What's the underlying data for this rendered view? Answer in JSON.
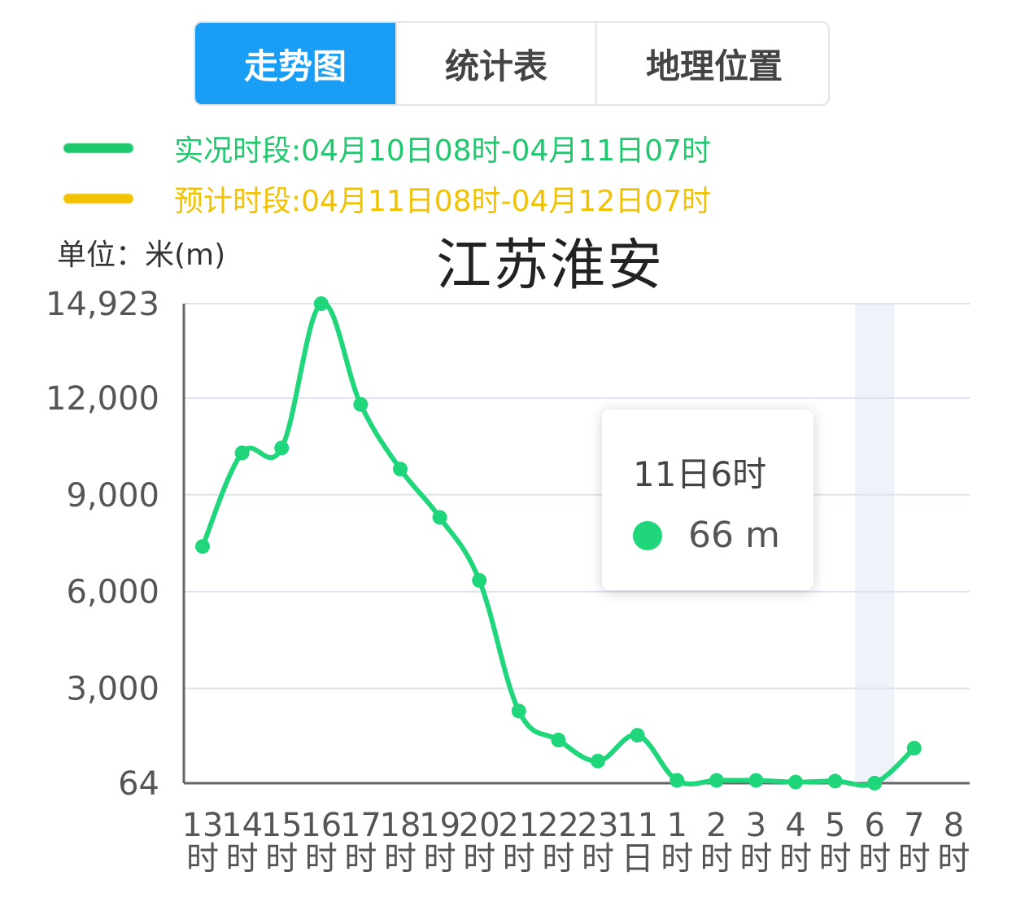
{
  "tabs": [
    {
      "label": "走势图",
      "active": true
    },
    {
      "label": "统计表",
      "active": false
    },
    {
      "label": "地理位置",
      "active": false
    }
  ],
  "legend": {
    "actual": {
      "label": "实况时段:04月10日08时-04月11日07时",
      "color": "#1fc86e"
    },
    "forecast": {
      "label": "预计时段:04月11日08时-04月12日07时",
      "color": "#f2c200"
    }
  },
  "unit_label": "单位：米(m)",
  "chart_data": {
    "type": "line",
    "title": "江苏淮安",
    "ylabel": "单位：米(m)",
    "ylim": [
      64,
      14923
    ],
    "yticks": [
      {
        "label": "14,923",
        "value": 14923
      },
      {
        "label": "12,000",
        "value": 12000
      },
      {
        "label": "9,000",
        "value": 9000
      },
      {
        "label": "6,000",
        "value": 6000
      },
      {
        "label": "3,000",
        "value": 3000
      },
      {
        "label": "64",
        "value": 64
      }
    ],
    "categories": [
      [
        "13",
        "时"
      ],
      [
        "14",
        "时"
      ],
      [
        "15",
        "时"
      ],
      [
        "16",
        "时"
      ],
      [
        "17",
        "时"
      ],
      [
        "18",
        "时"
      ],
      [
        "19",
        "时"
      ],
      [
        "20",
        "时"
      ],
      [
        "21",
        "时"
      ],
      [
        "22",
        "时"
      ],
      [
        "23",
        "时"
      ],
      [
        "11",
        "日"
      ],
      [
        "1",
        "时"
      ],
      [
        "2",
        "时"
      ],
      [
        "3",
        "时"
      ],
      [
        "4",
        "时"
      ],
      [
        "5",
        "时"
      ],
      [
        "6",
        "时"
      ],
      [
        "7",
        "时"
      ],
      [
        "8",
        "时"
      ]
    ],
    "series": [
      {
        "color": "#1fd67a",
        "values": [
          7400,
          10300,
          10450,
          14923,
          11800,
          9800,
          8300,
          6350,
          2300,
          1400,
          750,
          1550,
          150,
          150,
          150,
          100,
          130,
          66,
          1150,
          null
        ]
      }
    ],
    "highlight_index": 17,
    "grid": true
  },
  "tooltip": {
    "title": "11日6时",
    "value": "66 m",
    "color": "#1fd67a"
  }
}
